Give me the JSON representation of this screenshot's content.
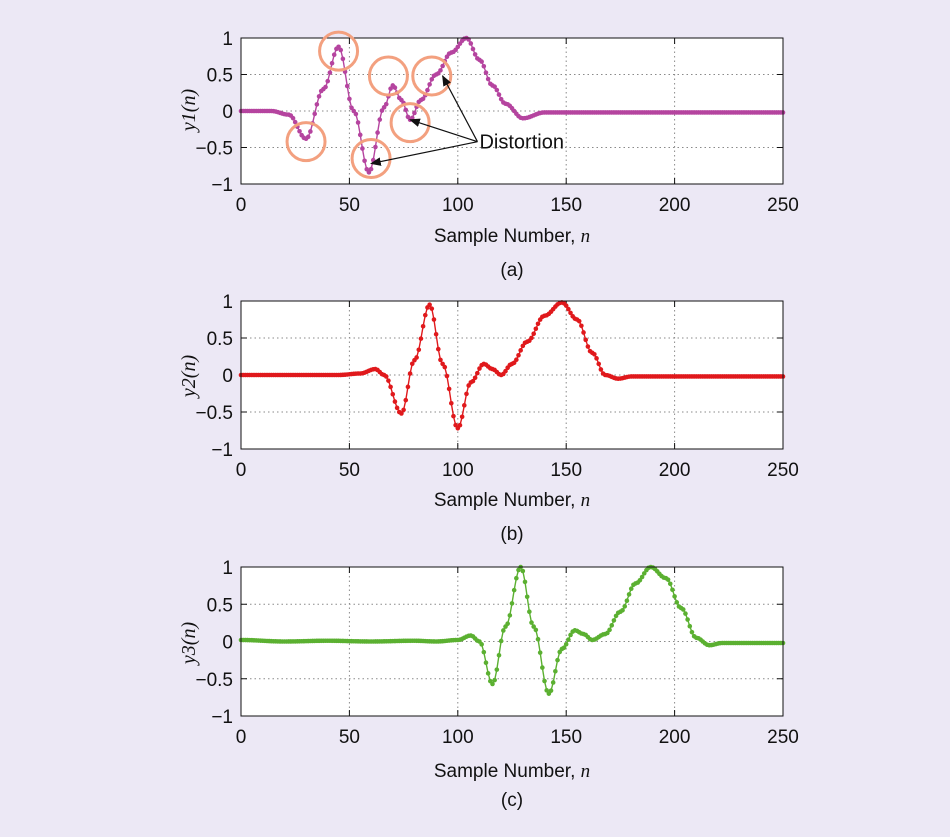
{
  "colors": {
    "background": "#ece8f5",
    "panel": "#ffffff",
    "grid": "#888888",
    "marker": "#f3a07f"
  },
  "chart_data": [
    {
      "type": "line",
      "ylabel": "y1(n)",
      "xlabel": "Sample Number,",
      "xvar": "n",
      "caption": "(a)",
      "xlim": [
        0,
        250
      ],
      "ylim": [
        -1,
        1
      ],
      "xticks": [
        "0",
        "50",
        "100",
        "150",
        "200",
        "250"
      ],
      "yticks": [
        "1",
        "0.5",
        "0",
        "−0.5",
        "−1"
      ],
      "color": "#b5449f",
      "x": [
        0,
        14,
        22,
        30,
        38,
        45,
        52,
        59,
        66,
        70,
        74,
        78,
        83,
        90,
        97,
        104,
        110,
        116,
        122,
        130,
        140,
        250
      ],
      "y": [
        0,
        0,
        -0.05,
        -0.38,
        0.3,
        0.88,
        0.0,
        -0.84,
        0.05,
        0.35,
        0.15,
        -0.12,
        0.15,
        0.5,
        0.8,
        1.0,
        0.7,
        0.35,
        0.1,
        -0.1,
        -0.02,
        -0.02
      ],
      "annotation": {
        "text": "Distortion",
        "x": 110,
        "y": -0.42,
        "targets": [
          [
            60,
            -0.72
          ],
          [
            78,
            -0.12
          ],
          [
            93,
            0.48
          ]
        ]
      },
      "circles": [
        [
          30,
          -0.42
        ],
        [
          45,
          0.82
        ],
        [
          60,
          -0.65
        ],
        [
          68,
          0.48
        ],
        [
          78,
          -0.16
        ],
        [
          88,
          0.48
        ]
      ]
    },
    {
      "type": "line",
      "ylabel": "y2(n)",
      "xlabel": "Sample Number,",
      "xvar": "n",
      "caption": "(b)",
      "xlim": [
        0,
        250
      ],
      "ylim": [
        -1,
        1
      ],
      "xticks": [
        "0",
        "50",
        "100",
        "150",
        "200",
        "250"
      ],
      "yticks": [
        "1",
        "0.5",
        "0",
        "−0.5",
        "−1"
      ],
      "color": "#e0191c",
      "x": [
        0,
        45,
        55,
        62,
        66,
        74,
        80,
        87,
        93,
        100,
        106,
        112,
        116,
        120,
        125,
        132,
        140,
        148,
        155,
        162,
        168,
        174,
        180,
        250
      ],
      "y": [
        0,
        0,
        0.02,
        0.08,
        0.0,
        -0.52,
        0.2,
        0.95,
        0.15,
        -0.72,
        -0.1,
        0.15,
        0.08,
        0.0,
        0.15,
        0.45,
        0.8,
        0.98,
        0.75,
        0.3,
        0.0,
        -0.05,
        -0.02,
        -0.02
      ]
    },
    {
      "type": "line",
      "ylabel": "y3(n)",
      "xlabel": "Sample Number,",
      "xvar": "n",
      "caption": "(c)",
      "xlim": [
        0,
        250
      ],
      "ylim": [
        -1,
        1
      ],
      "xticks": [
        "0",
        "50",
        "100",
        "150",
        "200",
        "250"
      ],
      "yticks": [
        "1",
        "0.5",
        "0",
        "−0.5",
        "−1"
      ],
      "color": "#5bb031",
      "x": [
        0,
        20,
        40,
        60,
        80,
        90,
        100,
        106,
        110,
        116,
        122,
        129,
        135,
        142,
        148,
        154,
        158,
        162,
        168,
        175,
        182,
        189,
        196,
        203,
        210,
        216,
        222,
        250
      ],
      "y": [
        0.02,
        0.0,
        0.01,
        0.0,
        0.01,
        0.0,
        0.02,
        0.08,
        0.0,
        -0.57,
        0.2,
        1.0,
        0.2,
        -0.7,
        -0.1,
        0.15,
        0.1,
        0.02,
        0.1,
        0.4,
        0.78,
        1.0,
        0.85,
        0.45,
        0.05,
        -0.05,
        -0.02,
        -0.02
      ]
    }
  ]
}
